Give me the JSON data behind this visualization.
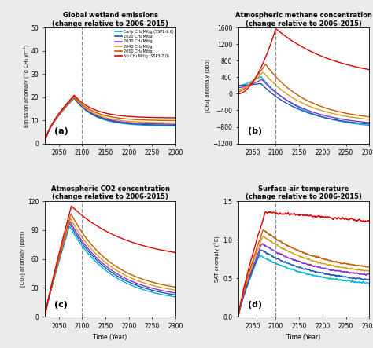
{
  "title_a": "Global wetland emissions\n(change relative to 2006-2015)",
  "title_b": "Atmospheric methane concentration\n(change relative to 2006-2015)",
  "title_c": "Atmospheric CO2 concentration\n(change relative to 2006-2015)",
  "title_d": "Surface air temperature\n(change relative to 2006-2015)",
  "ylabel_a": "Emission anomaly (Tg CH₄ yr⁻¹)",
  "ylabel_b": "[CH₄] anomaly (ppb)",
  "ylabel_c": "[CO₂] anomaly (ppm)",
  "ylabel_d": "SAT anomaly (°C)",
  "xlabel": "Time (Year)",
  "legend_labels": [
    "Early CH₄ Mitig (SSP1-2.6)",
    "2020 CH₄ Mitig",
    "2030 CH₄ Mitig",
    "2040 CH₄ Mitig",
    "2050 CH₄ Mitig",
    "No CH₄ Mitig (SSP3-7.0)"
  ],
  "colors": [
    "#00b4d8",
    "#1a56b0",
    "#8b2fc9",
    "#d4a017",
    "#c85a00",
    "#dd0000"
  ],
  "dashed_year": 2100,
  "xstart": 2020,
  "xmax": 2300,
  "panel_labels": [
    "(a)",
    "(b)",
    "(c)",
    "(d)"
  ],
  "bg_color": "#ebebeb"
}
